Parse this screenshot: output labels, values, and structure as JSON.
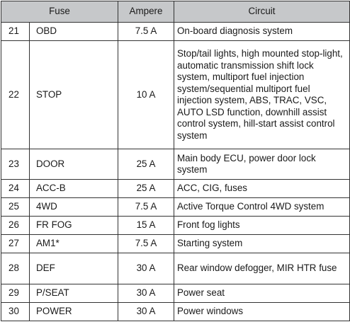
{
  "header": {
    "fuse": "Fuse",
    "ampere": "Ampere",
    "circuit": "Circuit"
  },
  "rows": [
    {
      "num": "21",
      "name": "OBD",
      "ampere": "7.5 A",
      "circuit": "On-board diagnosis system"
    },
    {
      "num": "22",
      "name": "STOP",
      "ampere": "10 A",
      "circuit": "Stop/tail lights, high mounted stop-light, automatic transmission shift lock system, multiport fuel injection system/sequential multiport fuel injection system, ABS, TRAC, VSC, AUTO LSD function, downhill assist control system, hill-start assist control system"
    },
    {
      "num": "23",
      "name": "DOOR",
      "ampere": "25 A",
      "circuit": "Main body ECU, power door lock system"
    },
    {
      "num": "24",
      "name": "ACC-B",
      "ampere": "25 A",
      "circuit": "ACC, CIG, fuses"
    },
    {
      "num": "25",
      "name": "4WD",
      "ampere": "7.5 A",
      "circuit": "Active Torque Control 4WD system"
    },
    {
      "num": "26",
      "name": "FR FOG",
      "ampere": "15 A",
      "circuit": "Front fog lights"
    },
    {
      "num": "27",
      "name": "AM1*",
      "ampere": "7.5 A",
      "circuit": "Starting system"
    },
    {
      "num": "28",
      "name": "DEF",
      "ampere": "30 A",
      "circuit": "Rear window defogger, MIR HTR fuse"
    },
    {
      "num": "29",
      "name": "P/SEAT",
      "ampere": "30 A",
      "circuit": "Power seat"
    },
    {
      "num": "30",
      "name": "POWER",
      "ampere": "30 A",
      "circuit": "Power windows"
    }
  ],
  "colors": {
    "header_background": "#c6c8ca",
    "border": "#333333",
    "text": "#1a1a1a"
  }
}
